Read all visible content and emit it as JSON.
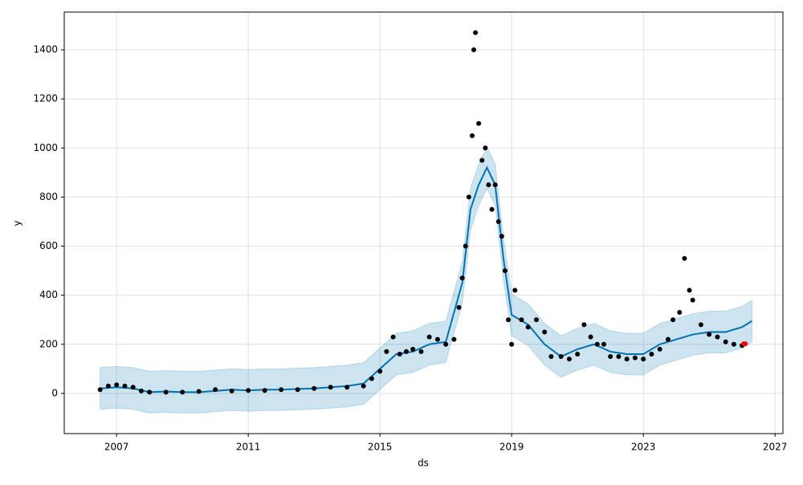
{
  "chart_data": {
    "type": "forecast",
    "xlabel": "ds",
    "ylabel": "y",
    "xlim": [
      2005.41,
      2027.24
    ],
    "ylim": [
      -164,
      1554
    ],
    "xticks": [
      2007,
      2011,
      2015,
      2019,
      2023,
      2027
    ],
    "yticks": [
      0,
      200,
      400,
      600,
      800,
      1000,
      1200,
      1400
    ],
    "grid": true,
    "series": [
      {
        "type": "band",
        "color": "#0072B2",
        "x": [
          2006.5,
          2007,
          2007.5,
          2008,
          2008.5,
          2009,
          2009.5,
          2010,
          2010.5,
          2011,
          2011.5,
          2012,
          2012.5,
          2013,
          2013.5,
          2014,
          2014.5,
          2015,
          2015.5,
          2016,
          2016.5,
          2017,
          2017.5,
          2017.75,
          2018,
          2018.25,
          2018.5,
          2018.75,
          2019,
          2019.5,
          2020,
          2020.5,
          2021,
          2021.5,
          2022,
          2022.5,
          2023,
          2023.5,
          2024,
          2024.5,
          2025,
          2025.5,
          2026,
          2026.3
        ],
        "lower": [
          -65,
          -60,
          -65,
          -80,
          -77,
          -80,
          -80,
          -75,
          -70,
          -73,
          -70,
          -70,
          -67,
          -65,
          -60,
          -55,
          -45,
          15,
          75,
          85,
          115,
          125,
          365,
          665,
          765,
          835,
          765,
          465,
          235,
          195,
          115,
          65,
          95,
          115,
          85,
          75,
          75,
          115,
          135,
          155,
          165,
          165,
          185,
          210
        ],
        "upper": [
          105,
          110,
          105,
          90,
          93,
          90,
          90,
          95,
          100,
          97,
          100,
          100,
          103,
          105,
          110,
          115,
          125,
          185,
          245,
          255,
          285,
          295,
          535,
          835,
          935,
          1005,
          935,
          635,
          405,
          365,
          285,
          235,
          265,
          285,
          255,
          245,
          245,
          285,
          305,
          325,
          335,
          335,
          355,
          380
        ]
      },
      {
        "type": "line",
        "color": "#0072B2",
        "x": [
          2006.5,
          2007,
          2007.5,
          2008,
          2008.5,
          2009,
          2009.5,
          2010,
          2010.5,
          2011,
          2011.5,
          2012,
          2012.5,
          2013,
          2013.5,
          2014,
          2014.5,
          2015,
          2015.5,
          2016,
          2016.5,
          2017,
          2017.5,
          2017.75,
          2018,
          2018.25,
          2018.5,
          2018.75,
          2019,
          2019.5,
          2020,
          2020.5,
          2021,
          2021.5,
          2022,
          2022.5,
          2023,
          2023.5,
          2024,
          2024.5,
          2025,
          2025.5,
          2026,
          2026.3
        ],
        "values": [
          20,
          25,
          20,
          5,
          8,
          5,
          5,
          10,
          15,
          12,
          15,
          15,
          18,
          20,
          25,
          30,
          40,
          100,
          160,
          170,
          200,
          210,
          450,
          750,
          850,
          920,
          850,
          550,
          320,
          280,
          200,
          150,
          180,
          200,
          170,
          160,
          160,
          200,
          220,
          240,
          250,
          250,
          270,
          295
        ]
      },
      {
        "type": "scatter",
        "color": "#000000",
        "x": [
          2006.5,
          2006.75,
          2007,
          2007.25,
          2007.5,
          2007.75,
          2008,
          2008.5,
          2009,
          2009.5,
          2010,
          2010.5,
          2011,
          2011.5,
          2012,
          2012.5,
          2013,
          2013.5,
          2014,
          2014.5,
          2014.75,
          2015,
          2015.2,
          2015.4,
          2015.6,
          2015.8,
          2016,
          2016.25,
          2016.5,
          2016.75,
          2017,
          2017.25,
          2017.4,
          2017.5,
          2017.6,
          2017.7,
          2017.8,
          2017.85,
          2017.9,
          2018,
          2018.1,
          2018.2,
          2018.3,
          2018.4,
          2018.5,
          2018.6,
          2018.7,
          2018.8,
          2018.9,
          2019,
          2019.1,
          2019.3,
          2019.5,
          2019.75,
          2020,
          2020.2,
          2020.5,
          2020.75,
          2021,
          2021.2,
          2021.4,
          2021.6,
          2021.8,
          2022,
          2022.25,
          2022.5,
          2022.75,
          2023,
          2023.25,
          2023.5,
          2023.75,
          2023.9,
          2024.1,
          2024.25,
          2024.4,
          2024.5,
          2024.75,
          2025,
          2025.25,
          2025.5,
          2025.75,
          2026
        ],
        "values": [
          15,
          30,
          35,
          30,
          25,
          10,
          5,
          5,
          5,
          8,
          15,
          10,
          12,
          12,
          15,
          15,
          20,
          25,
          25,
          30,
          60,
          90,
          170,
          230,
          160,
          170,
          180,
          170,
          230,
          220,
          200,
          220,
          350,
          470,
          600,
          800,
          1050,
          1400,
          1470,
          1100,
          950,
          1000,
          850,
          750,
          850,
          700,
          640,
          500,
          300,
          200,
          420,
          300,
          270,
          300,
          250,
          150,
          150,
          140,
          160,
          280,
          230,
          200,
          200,
          150,
          150,
          140,
          145,
          140,
          160,
          180,
          220,
          300,
          330,
          550,
          420,
          380,
          280,
          240,
          230,
          210,
          200,
          195
        ]
      },
      {
        "type": "scatter",
        "color": "#ff0000",
        "x": [
          2026.05,
          2026.1
        ],
        "values": [
          202,
          202
        ]
      }
    ]
  }
}
